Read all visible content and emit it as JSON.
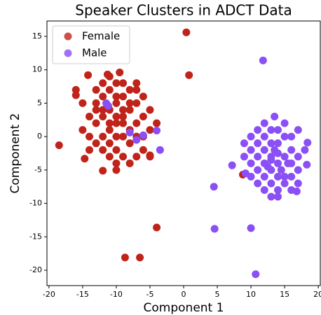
{
  "chart_data": {
    "type": "scatter",
    "title": "Speaker Clusters in ADCT Data",
    "x_label": "Component 1",
    "y_label": "Component 2",
    "xlim": [
      -20.3,
      20.3
    ],
    "ylim": [
      -22.3,
      17.3
    ],
    "xticks": [
      -20,
      -15,
      -10,
      -5,
      0,
      5,
      10,
      15,
      20
    ],
    "yticks": [
      -20,
      -15,
      -10,
      -5,
      0,
      5,
      10,
      15
    ],
    "grid": false,
    "legend": "upper left",
    "series": [
      {
        "name": "Female",
        "color": "#c0231a",
        "x": [
          -10,
          -9,
          -11,
          -8,
          -12,
          -10,
          -9,
          -11,
          -13,
          -7,
          -10,
          -8,
          -12,
          -9,
          -11,
          -7,
          -13,
          -14,
          -6,
          -10,
          -8,
          -12,
          -9,
          -7,
          -11,
          -10,
          -8,
          -9,
          -12,
          -13,
          -6,
          -14,
          -15,
          -11,
          -10,
          -8,
          -6,
          -5,
          -5,
          -7,
          -13,
          -15,
          -9,
          -11,
          -6,
          -4,
          -14,
          -12,
          -8,
          -10,
          -9,
          -11,
          -7,
          -13,
          -10,
          -12,
          -16,
          -5,
          -7,
          -10,
          0.4,
          0.8,
          -18.5,
          -8.7,
          -6.5,
          -4,
          -12,
          -14.7,
          -11.3,
          -14.2,
          -9.5,
          -16,
          -5,
          8.8
        ],
        "values": [
          2,
          3,
          1,
          4,
          3,
          5,
          0,
          -1,
          2,
          2,
          -2,
          -1,
          6,
          6,
          7,
          5,
          5,
          3,
          3,
          8,
          7,
          -2,
          -3,
          -3,
          4,
          0,
          1,
          2,
          0,
          -1,
          0,
          0,
          1,
          -3,
          -4,
          -4,
          -2,
          1,
          4,
          7,
          7,
          5,
          8,
          9,
          6,
          2,
          -2,
          4,
          5,
          3,
          4,
          2,
          0,
          4,
          6,
          8,
          7,
          -3,
          8,
          -5,
          15.6,
          9.2,
          -1.3,
          -18.1,
          -18.1,
          -13.6,
          -5.1,
          -3.3,
          9.3,
          9.2,
          9.6,
          6.2,
          -2.8,
          -5.7
        ]
      },
      {
        "name": "Male",
        "color": "#8a4ff5",
        "x": [
          13,
          14,
          12,
          15,
          13,
          14,
          12,
          11,
          16,
          15,
          13,
          14,
          12,
          11,
          10,
          16,
          17,
          15,
          13,
          14,
          12,
          11,
          10,
          16,
          15,
          13,
          14,
          12,
          11,
          17,
          9,
          10,
          16,
          18,
          13,
          14,
          12.5,
          15.5,
          14.5,
          13.5,
          12,
          15,
          17,
          10,
          11,
          14,
          13,
          9,
          16,
          17,
          11.8,
          10.7,
          4.6,
          10,
          4.5,
          7.2,
          9.2,
          16.8,
          18.3,
          18.4,
          13.5,
          -11.5,
          -11.2,
          -8,
          -4,
          -3.5,
          -7,
          -6
        ],
        "values": [
          -3,
          -4,
          -2,
          -3,
          -5,
          -1,
          -4,
          -3,
          -4,
          -6,
          -1,
          -6,
          -6,
          -5,
          -2,
          -2,
          -3,
          0,
          1,
          1,
          0,
          -1,
          -4,
          -6,
          -7,
          -7,
          -8,
          -8,
          -7,
          -5,
          -3,
          -6,
          0,
          -2,
          -3.5,
          -2.5,
          -4.5,
          -4,
          -5,
          -2,
          2,
          2,
          1,
          0,
          1,
          -9,
          -9,
          -1,
          -8,
          -7,
          11.4,
          -20.6,
          -13.8,
          -13.7,
          -7.5,
          -4.3,
          -5.5,
          -8.2,
          -4.2,
          -0.9,
          3,
          5,
          4.6,
          0.6,
          0.9,
          -2,
          -0.5,
          0.2
        ]
      }
    ]
  }
}
